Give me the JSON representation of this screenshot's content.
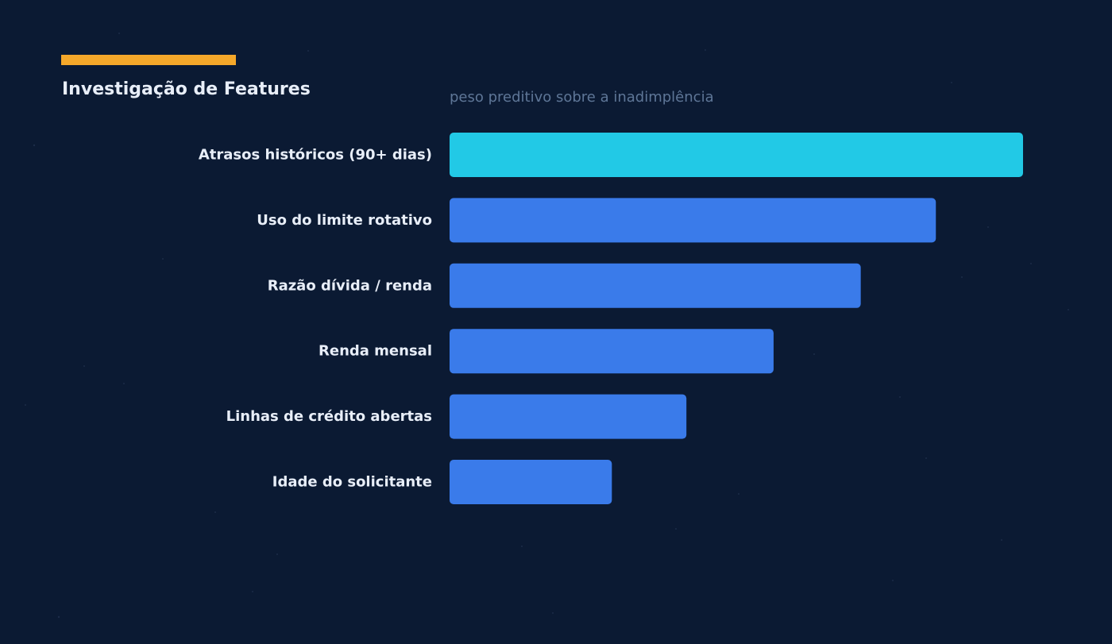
{
  "header": {
    "title": "Investigação de Features",
    "accent_color": "#f5a82a"
  },
  "chart_data": {
    "type": "bar",
    "orientation": "horizontal",
    "title": "Investigação de Features",
    "subtitle": "peso preditivo sobre a inadimplência",
    "categories": [
      "Atrasos históricos (90+ dias)",
      "Uso do limite rotativo",
      "Razão dívida / renda",
      "Renda mensal",
      "Linhas de crédito abertas",
      "Idade do solicitante"
    ],
    "values": [
      1.0,
      0.848,
      0.717,
      0.565,
      0.413,
      0.283
    ],
    "xlim": [
      0,
      1
    ],
    "grid": false,
    "legend": "none",
    "highlight_color": "#22c9e6",
    "bar_color": "#3a7bea"
  }
}
